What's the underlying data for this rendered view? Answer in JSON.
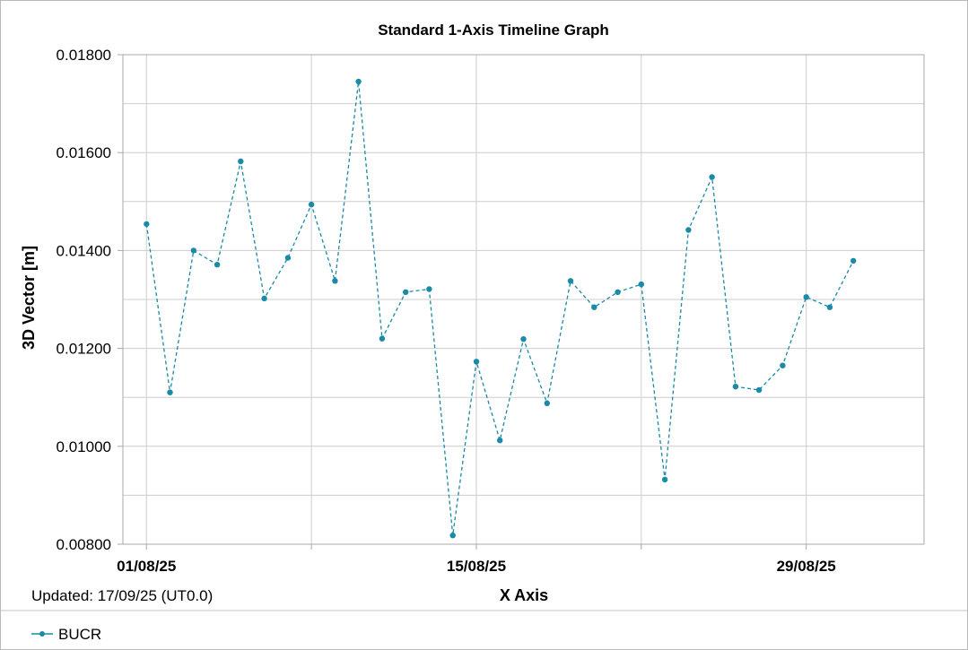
{
  "chart_data": {
    "type": "line",
    "title": "Standard 1-Axis Timeline Graph",
    "xlabel": "X Axis",
    "ylabel": "3D Vector [m]",
    "ylim": [
      0.008,
      0.018
    ],
    "y_ticks": [
      "0.00800",
      "0.01000",
      "0.01200",
      "0.01400",
      "0.01600",
      "0.01800"
    ],
    "x_tick_labels": [
      "01/08/25",
      "15/08/25",
      "29/08/25"
    ],
    "x_tick_dates": [
      "2025-08-01",
      "2025-08-15",
      "2025-08-29"
    ],
    "xlim": [
      "2025-07-31",
      "2025-09-03"
    ],
    "grid": true,
    "legend_position": "bottom-left",
    "series": [
      {
        "name": "BUCR",
        "color": "#1a8aa6",
        "line_style": "dashed",
        "marker": "circle",
        "points": [
          {
            "x": "2025-08-01",
            "y": 0.01454
          },
          {
            "x": "2025-08-02",
            "y": 0.0111
          },
          {
            "x": "2025-08-03",
            "y": 0.014
          },
          {
            "x": "2025-08-04",
            "y": 0.01371
          },
          {
            "x": "2025-08-05",
            "y": 0.01582
          },
          {
            "x": "2025-08-06",
            "y": 0.01302
          },
          {
            "x": "2025-08-07",
            "y": 0.01385
          },
          {
            "x": "2025-08-08",
            "y": 0.01494
          },
          {
            "x": "2025-08-09",
            "y": 0.01338
          },
          {
            "x": "2025-08-10",
            "y": 0.01745
          },
          {
            "x": "2025-08-11",
            "y": 0.0122
          },
          {
            "x": "2025-08-12",
            "y": 0.01315
          },
          {
            "x": "2025-08-13",
            "y": 0.01321
          },
          {
            "x": "2025-08-14",
            "y": 0.00818
          },
          {
            "x": "2025-08-15",
            "y": 0.01173
          },
          {
            "x": "2025-08-16",
            "y": 0.01012
          },
          {
            "x": "2025-08-17",
            "y": 0.01219
          },
          {
            "x": "2025-08-18",
            "y": 0.01088
          },
          {
            "x": "2025-08-19",
            "y": 0.01338
          },
          {
            "x": "2025-08-20",
            "y": 0.01284
          },
          {
            "x": "2025-08-21",
            "y": 0.01315
          },
          {
            "x": "2025-08-22",
            "y": 0.01331
          },
          {
            "x": "2025-08-23",
            "y": 0.00932
          },
          {
            "x": "2025-08-24",
            "y": 0.01442
          },
          {
            "x": "2025-08-25",
            "y": 0.0155
          },
          {
            "x": "2025-08-26",
            "y": 0.01122
          },
          {
            "x": "2025-08-27",
            "y": 0.01115
          },
          {
            "x": "2025-08-28",
            "y": 0.01165
          },
          {
            "x": "2025-08-29",
            "y": 0.01305
          },
          {
            "x": "2025-08-30",
            "y": 0.01284
          },
          {
            "x": "2025-08-31",
            "y": 0.01379
          }
        ]
      }
    ]
  },
  "footer": {
    "updated": "Updated: 17/09/25 (UT0.0)"
  },
  "legend": {
    "items": [
      {
        "label": "BUCR",
        "color": "#1a8aa6"
      }
    ]
  }
}
